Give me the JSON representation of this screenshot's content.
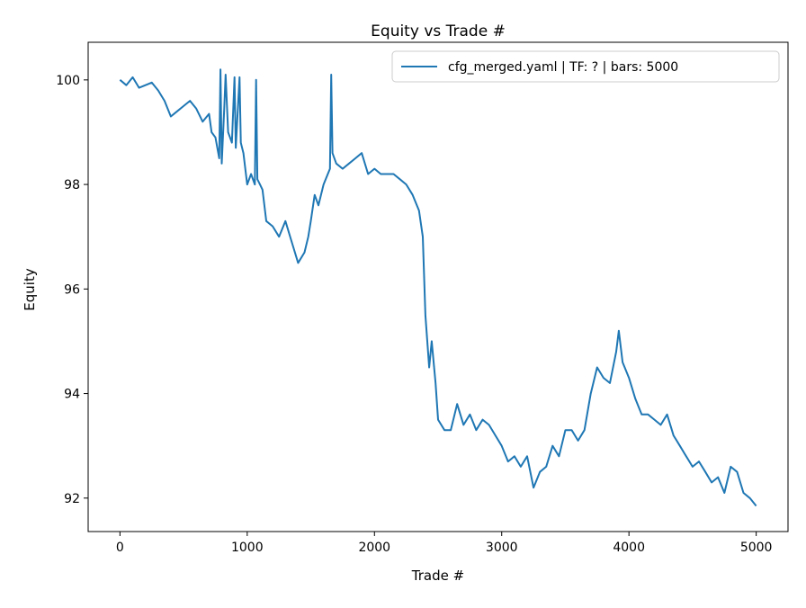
{
  "chart_data": {
    "type": "line",
    "title": "Equity vs Trade #",
    "x_label": "Trade #",
    "y_label": "Equity",
    "x": [
      0,
      50,
      100,
      150,
      200,
      250,
      300,
      350,
      400,
      450,
      500,
      550,
      600,
      650,
      700,
      720,
      750,
      780,
      790,
      800,
      820,
      830,
      850,
      880,
      900,
      910,
      940,
      950,
      970,
      1000,
      1030,
      1060,
      1070,
      1080,
      1100,
      1120,
      1150,
      1200,
      1250,
      1300,
      1350,
      1400,
      1450,
      1480,
      1500,
      1530,
      1560,
      1600,
      1650,
      1660,
      1670,
      1700,
      1750,
      1800,
      1850,
      1900,
      1950,
      2000,
      2050,
      2100,
      2150,
      2200,
      2250,
      2300,
      2350,
      2380,
      2400,
      2430,
      2450,
      2480,
      2500,
      2550,
      2600,
      2650,
      2700,
      2750,
      2800,
      2850,
      2900,
      2950,
      3000,
      3050,
      3100,
      3150,
      3200,
      3250,
      3300,
      3350,
      3400,
      3450,
      3500,
      3550,
      3600,
      3650,
      3700,
      3750,
      3800,
      3850,
      3900,
      3920,
      3950,
      4000,
      4050,
      4100,
      4150,
      4200,
      4250,
      4300,
      4350,
      4400,
      4450,
      4500,
      4550,
      4600,
      4650,
      4700,
      4750,
      4800,
      4850,
      4900,
      4950,
      5000
    ],
    "series": [
      {
        "name": "cfg_merged.yaml | TF: ? | bars: 5000",
        "color": "#1f77b4",
        "values": [
          100,
          99.9,
          100.05,
          99.85,
          99.9,
          99.95,
          99.8,
          99.6,
          99.3,
          99.4,
          99.5,
          99.6,
          99.45,
          99.2,
          99.35,
          99.0,
          98.9,
          98.5,
          100.2,
          98.4,
          99.5,
          100.1,
          99.0,
          98.8,
          100.05,
          98.7,
          100.05,
          98.8,
          98.6,
          98.0,
          98.2,
          98.0,
          100.0,
          98.1,
          98.0,
          97.9,
          97.3,
          97.2,
          97.0,
          97.3,
          96.9,
          96.5,
          96.7,
          97.0,
          97.3,
          97.8,
          97.6,
          98.0,
          98.3,
          100.1,
          98.6,
          98.4,
          98.3,
          98.4,
          98.5,
          98.6,
          98.2,
          98.3,
          98.2,
          98.2,
          98.2,
          98.1,
          98.0,
          97.8,
          97.5,
          97.0,
          95.5,
          94.5,
          95.0,
          94.2,
          93.5,
          93.3,
          93.3,
          93.8,
          93.4,
          93.6,
          93.3,
          93.5,
          93.4,
          93.2,
          93.0,
          92.7,
          92.8,
          92.6,
          92.8,
          92.2,
          92.5,
          92.6,
          93.0,
          92.8,
          93.3,
          93.3,
          93.1,
          93.3,
          94.0,
          94.5,
          94.3,
          94.2,
          94.8,
          95.2,
          94.6,
          94.3,
          93.9,
          93.6,
          93.6,
          93.5,
          93.4,
          93.6,
          93.2,
          93.0,
          92.8,
          92.6,
          92.7,
          92.5,
          92.3,
          92.4,
          92.1,
          92.6,
          92.5,
          92.1,
          92.0,
          91.85
        ]
      }
    ],
    "xlim": [
      -250,
      5250
    ],
    "ylim": [
      91.36,
      100.72
    ],
    "xticks": [
      0,
      1000,
      2000,
      3000,
      4000,
      5000
    ],
    "yticks": [
      92,
      94,
      96,
      98,
      100
    ],
    "legend": "upper right"
  }
}
